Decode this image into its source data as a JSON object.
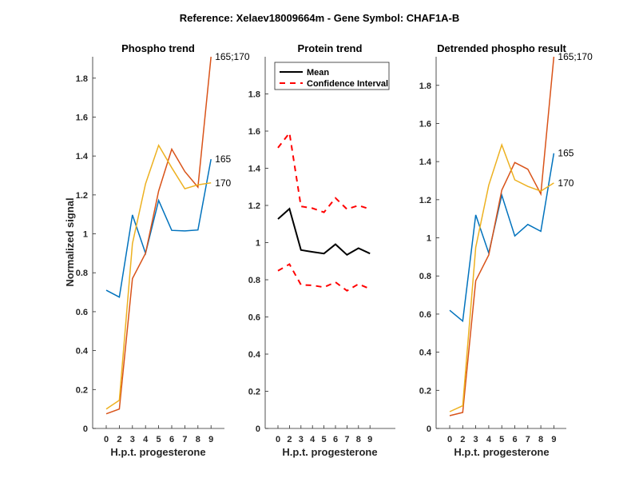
{
  "chart_data": {
    "suptitle": "Reference:  Xelaev18009664m - Gene Symbol:  CHAF1A-B",
    "panels": [
      {
        "type": "line",
        "title": "Phospho trend",
        "xlabel": "H.p.t. progesterone",
        "ylabel": "Normalized signal",
        "categories": [
          "0",
          "2",
          "3",
          "4",
          "5",
          "6",
          "7",
          "8",
          "9"
        ],
        "ylim": [
          0,
          1.91
        ],
        "yticks": [
          "0",
          "0.2",
          "0.4",
          "0.6",
          "0.8",
          "1",
          "1.2",
          "1.4",
          "1.6",
          "1.8"
        ],
        "grid": false,
        "series": [
          {
            "name": "165",
            "color": "#0072BD",
            "style": "solid",
            "end_label": "165",
            "values": [
              0.71,
              0.675,
              1.097,
              0.9,
              1.172,
              1.018,
              1.015,
              1.02,
              1.384
            ]
          },
          {
            "name": "165;170",
            "color": "#D95319",
            "style": "solid",
            "end_label": "165;170",
            "values": [
              0.075,
              0.1,
              0.77,
              0.9,
              1.22,
              1.435,
              1.32,
              1.24,
              1.91
            ]
          },
          {
            "name": "170",
            "color": "#EDB120",
            "style": "solid",
            "end_label": "170",
            "values": [
              0.1,
              0.145,
              0.95,
              1.257,
              1.455,
              1.34,
              1.232,
              1.252,
              1.262
            ]
          }
        ]
      },
      {
        "type": "line",
        "title": "Protein trend",
        "xlabel": "H.p.t. progesterone",
        "ylabel": "",
        "categories": [
          "0",
          "2",
          "3",
          "4",
          "5",
          "6",
          "7",
          "8",
          "9"
        ],
        "ylim": [
          0,
          2.0
        ],
        "yticks": [
          "0",
          "0.2",
          "0.4",
          "0.6",
          "0.8",
          "1",
          "1.2",
          "1.4",
          "1.6",
          "1.8"
        ],
        "grid": false,
        "legend": {
          "position": "top-left",
          "entries": [
            "Mean",
            "Confidence Interval"
          ]
        },
        "series": [
          {
            "name": "Mean",
            "color": "#000000",
            "style": "solid",
            "values": [
              1.127,
              1.182,
              0.96,
              0.95,
              0.941,
              0.991,
              0.934,
              0.97,
              0.941
            ]
          },
          {
            "name": "Confidence Interval (upper)",
            "color": "#FF0000",
            "style": "dashed",
            "values": [
              1.51,
              1.59,
              1.195,
              1.185,
              1.163,
              1.24,
              1.18,
              1.2,
              1.18
            ]
          },
          {
            "name": "Confidence Interval (lower)",
            "color": "#FF0000",
            "style": "dashed",
            "values": [
              0.848,
              0.884,
              0.773,
              0.77,
              0.76,
              0.787,
              0.741,
              0.777,
              0.751
            ]
          }
        ]
      },
      {
        "type": "line",
        "title": "Detrended phospho result",
        "xlabel": "H.p.t. progesterone",
        "ylabel": "",
        "categories": [
          "0",
          "2",
          "3",
          "4",
          "5",
          "6",
          "7",
          "8",
          "9"
        ],
        "ylim": [
          0,
          1.95
        ],
        "yticks": [
          "0",
          "0.2",
          "0.4",
          "0.6",
          "0.8",
          "1",
          "1.2",
          "1.4",
          "1.6",
          "1.8"
        ],
        "grid": false,
        "series": [
          {
            "name": "165",
            "color": "#0072BD",
            "style": "solid",
            "end_label": "165",
            "values": [
              0.62,
              0.563,
              1.12,
              0.92,
              1.224,
              1.01,
              1.07,
              1.034,
              1.444
            ]
          },
          {
            "name": "165;170",
            "color": "#D95319",
            "style": "solid",
            "end_label": "165;170",
            "values": [
              0.067,
              0.084,
              0.775,
              0.91,
              1.25,
              1.395,
              1.36,
              1.23,
              1.95
            ]
          },
          {
            "name": "170",
            "color": "#EDB120",
            "style": "solid",
            "end_label": "170",
            "values": [
              0.088,
              0.119,
              0.95,
              1.276,
              1.488,
              1.304,
              1.27,
              1.245,
              1.288
            ]
          }
        ]
      }
    ]
  }
}
